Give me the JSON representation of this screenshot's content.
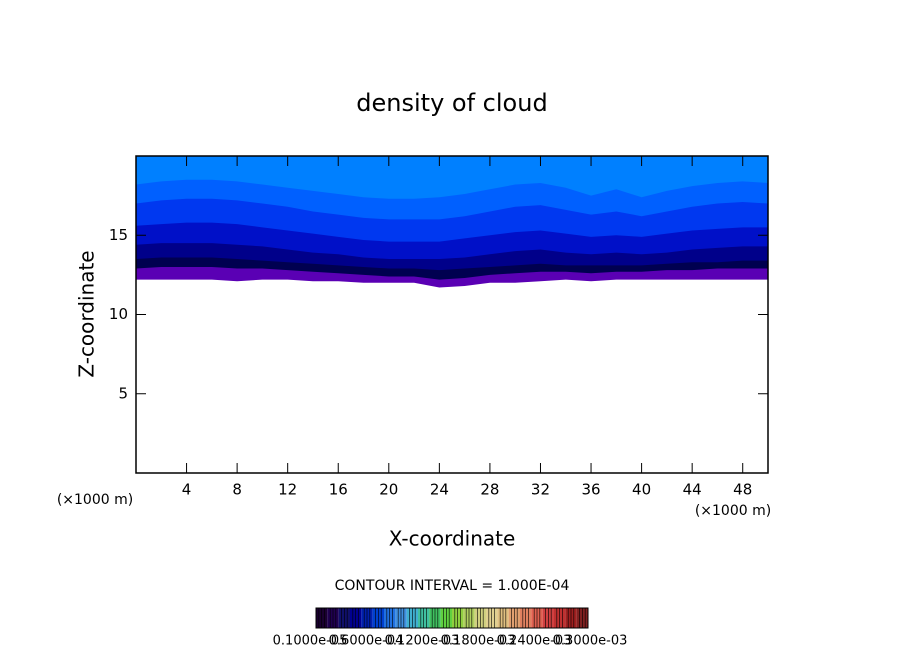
{
  "chart_data": {
    "type": "contour",
    "title": "density of cloud",
    "x_label": "X-coordinate",
    "y_label": "Z-coordinate",
    "x_unit": "(×1000 m)",
    "xlim": [
      0,
      50
    ],
    "xticks": [
      4,
      8,
      12,
      16,
      20,
      24,
      28,
      32,
      36,
      40,
      44,
      48
    ],
    "ylim": [
      0,
      20
    ],
    "yticks": [
      5,
      10,
      15
    ],
    "x": [
      0,
      2,
      4,
      6,
      8,
      10,
      12,
      14,
      16,
      18,
      20,
      22,
      24,
      26,
      28,
      30,
      32,
      34,
      36,
      38,
      40,
      42,
      44,
      46,
      48,
      50
    ],
    "cloud_base": [
      12.2,
      12.2,
      12.2,
      12.2,
      12.1,
      12.2,
      12.2,
      12.1,
      12.1,
      12.0,
      12.0,
      12.0,
      11.7,
      11.8,
      12.0,
      12.0,
      12.1,
      12.2,
      12.1,
      12.2,
      12.2,
      12.2,
      12.2,
      12.2,
      12.2,
      12.2
    ],
    "series": [
      {
        "color": "#0080ff",
        "values": [
          20,
          20,
          20,
          20,
          20,
          20,
          20,
          20,
          20,
          20,
          20,
          20,
          20,
          20,
          20,
          20,
          20,
          20,
          20,
          20,
          20,
          20,
          20,
          20,
          20,
          20
        ]
      },
      {
        "color": "#0060ff",
        "values": [
          18.2,
          18.4,
          18.5,
          18.5,
          18.4,
          18.2,
          18.0,
          17.8,
          17.6,
          17.4,
          17.3,
          17.3,
          17.4,
          17.6,
          17.9,
          18.2,
          18.3,
          18.0,
          17.5,
          17.9,
          17.4,
          17.8,
          18.1,
          18.3,
          18.4,
          18.3
        ]
      },
      {
        "color": "#0038f0",
        "values": [
          17.0,
          17.2,
          17.3,
          17.3,
          17.2,
          17.0,
          16.8,
          16.5,
          16.3,
          16.1,
          16.0,
          16.0,
          16.0,
          16.2,
          16.5,
          16.8,
          16.9,
          16.6,
          16.3,
          16.5,
          16.2,
          16.5,
          16.8,
          17.0,
          17.1,
          17.0
        ]
      },
      {
        "color": "#0010c8",
        "values": [
          15.6,
          15.7,
          15.8,
          15.8,
          15.7,
          15.5,
          15.3,
          15.1,
          14.9,
          14.7,
          14.6,
          14.6,
          14.6,
          14.8,
          15.0,
          15.2,
          15.3,
          15.1,
          14.9,
          15.0,
          14.9,
          15.1,
          15.3,
          15.4,
          15.5,
          15.5
        ]
      },
      {
        "color": "#00008a",
        "values": [
          14.4,
          14.5,
          14.5,
          14.5,
          14.4,
          14.3,
          14.1,
          13.9,
          13.8,
          13.6,
          13.5,
          13.5,
          13.5,
          13.6,
          13.8,
          14.0,
          14.1,
          13.9,
          13.8,
          13.9,
          13.8,
          13.9,
          14.1,
          14.2,
          14.3,
          14.3
        ]
      },
      {
        "color": "#000050",
        "values": [
          13.5,
          13.6,
          13.6,
          13.6,
          13.5,
          13.4,
          13.3,
          13.2,
          13.1,
          13.0,
          12.9,
          12.9,
          12.8,
          12.9,
          13.0,
          13.1,
          13.2,
          13.1,
          13.1,
          13.1,
          13.1,
          13.2,
          13.3,
          13.3,
          13.4,
          13.4
        ]
      },
      {
        "color": "#5a00b4",
        "values": [
          12.9,
          13.0,
          13.0,
          13.0,
          12.9,
          12.9,
          12.8,
          12.7,
          12.6,
          12.5,
          12.4,
          12.4,
          12.2,
          12.3,
          12.5,
          12.6,
          12.7,
          12.7,
          12.6,
          12.7,
          12.7,
          12.8,
          12.8,
          12.9,
          12.9,
          12.9
        ]
      }
    ],
    "contour_interval_label": "CONTOUR INTERVAL = 1.000E-04",
    "colorbar": {
      "colors": [
        "#1a0030",
        "#200050",
        "#10106a",
        "#000090",
        "#0020b0",
        "#0040d0",
        "#2070e0",
        "#4090e0",
        "#40b0d0",
        "#40c0a0",
        "#40c060",
        "#60d040",
        "#90d040",
        "#b0d060",
        "#d0d080",
        "#e0d090",
        "#e0c080",
        "#e0a070",
        "#e08060",
        "#e06050",
        "#d04040",
        "#c03030",
        "#a02020",
        "#802020"
      ],
      "labels": [
        "0.1000e-05",
        "0.6000e-04",
        "0.1200e-03",
        "0.1800e-03",
        "0.2400e-03",
        "0.3000e-03"
      ]
    }
  }
}
